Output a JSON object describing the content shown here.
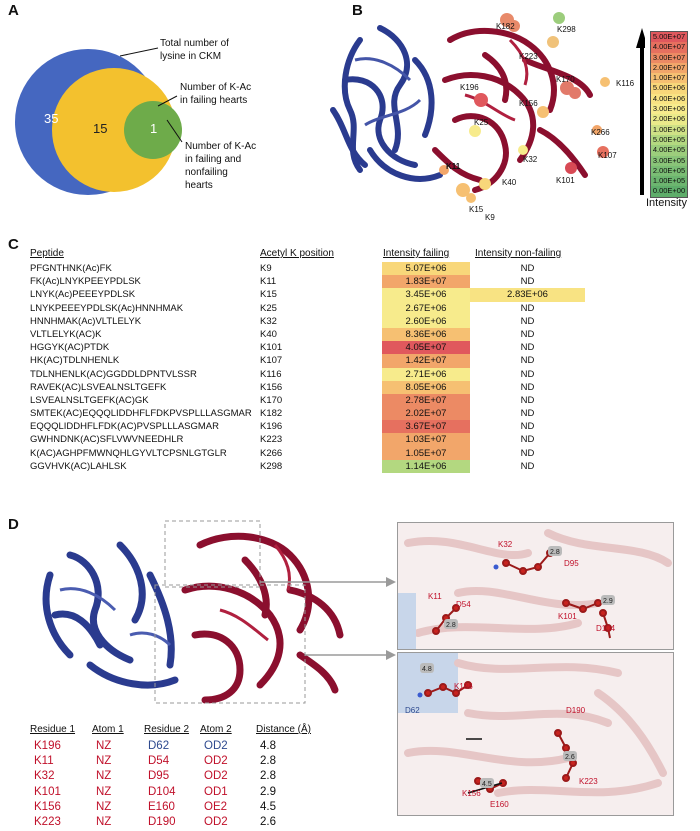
{
  "panel_labels": {
    "a": "A",
    "b": "B",
    "c": "C",
    "d": "D"
  },
  "venn": {
    "outer_value": "35",
    "middle_value": "15",
    "inner_value": "1",
    "label_total": [
      "Total number of",
      "lysine in CKM"
    ],
    "label_failing": [
      "Number of K-Ac",
      "in failing hearts"
    ],
    "label_both": [
      "Number of K-Ac",
      "in failing and",
      "nonfailing",
      "hearts"
    ],
    "colors": {
      "outer": "#4567c0",
      "middle": "#f3c12e",
      "inner": "#6eab4a"
    }
  },
  "structure_b": {
    "lysine_labels": [
      "K182",
      "K298",
      "K223",
      "K170",
      "K116",
      "K196",
      "K156",
      "K25",
      "K266",
      "K107",
      "K32",
      "K101",
      "K11",
      "K40",
      "K15",
      "K9"
    ],
    "scale_title": "Intensity",
    "scale": [
      {
        "label": "5.00E+07",
        "color": "#e0585d"
      },
      {
        "label": "4.00E+07",
        "color": "#e6705f"
      },
      {
        "label": "3.00E+07",
        "color": "#ec8a64"
      },
      {
        "label": "2.00E+07",
        "color": "#f2a66a"
      },
      {
        "label": "1.00E+07",
        "color": "#f6c072"
      },
      {
        "label": "5.00E+06",
        "color": "#f8d77a"
      },
      {
        "label": "4.00E+06",
        "color": "#f8e383"
      },
      {
        "label": "3.00E+06",
        "color": "#f7eb8c"
      },
      {
        "label": "2.00E+06",
        "color": "#eaea8a"
      },
      {
        "label": "1.00E+06",
        "color": "#cfe186"
      },
      {
        "label": "5.00E+05",
        "color": "#b3d880"
      },
      {
        "label": "4.00E+05",
        "color": "#9ccd7c"
      },
      {
        "label": "3.00E+05",
        "color": "#89c478"
      },
      {
        "label": "2.00E+05",
        "color": "#7abd74"
      },
      {
        "label": "1.00E+05",
        "color": "#6cb56f"
      },
      {
        "label": "0.00E+00",
        "color": "#5ead6a"
      }
    ]
  },
  "table_c": {
    "headers": {
      "peptide": "Peptide",
      "position": "Acetyl K position",
      "failing": "Intensity failing",
      "nonfailing": "Intensity non-failing"
    },
    "rows": [
      {
        "peptide": "PFGNTHNK(Ac)FK",
        "position": "K9",
        "failing": "5.07E+06",
        "nonfailing": "ND",
        "color": "#f8d77a"
      },
      {
        "peptide": "FK(Ac)LNYKPEEYPDLSK",
        "position": "K11",
        "failing": "1.83E+07",
        "nonfailing": "ND",
        "color": "#f2a66a"
      },
      {
        "peptide": "LNYK(Ac)PEEEYPDLSK",
        "position": "K15",
        "failing": "3.45E+06",
        "nonfailing": "2.83E+06",
        "color": "#f7eb8c",
        "nf_color": "#f8e383"
      },
      {
        "peptide": "LNYKPEEEYPDLSK(Ac)HNNHMAK",
        "position": "K25",
        "failing": "2.67E+06",
        "nonfailing": "ND",
        "color": "#f7eb8c"
      },
      {
        "peptide": "HNNHMAK(Ac)VLTLELYK",
        "position": "K32",
        "failing": "2.60E+06",
        "nonfailing": "ND",
        "color": "#f7eb8c"
      },
      {
        "peptide": "VLTLELYK(AC)K",
        "position": "K40",
        "failing": "8.36E+06",
        "nonfailing": "ND",
        "color": "#f6c072"
      },
      {
        "peptide": "HGGYK(AC)PTDK",
        "position": "K101",
        "failing": "4.05E+07",
        "nonfailing": "ND",
        "color": "#e0585d"
      },
      {
        "peptide": "HK(AC)TDLNHENLK",
        "position": "K107",
        "failing": "1.42E+07",
        "nonfailing": "ND",
        "color": "#f2a66a"
      },
      {
        "peptide": "TDLNHENLK(AC)GGDDLDPNTVLSSR",
        "position": "K116",
        "failing": "2.71E+06",
        "nonfailing": "ND",
        "color": "#f7eb8c"
      },
      {
        "peptide": "RAVEK(AC)LSVEALNSLTGEFK",
        "position": "K156",
        "failing": "8.05E+06",
        "nonfailing": "ND",
        "color": "#f6c072"
      },
      {
        "peptide": "LSVEALNSLTGEFK(AC)GK",
        "position": "K170",
        "failing": "2.78E+07",
        "nonfailing": "ND",
        "color": "#ec8a64"
      },
      {
        "peptide": "SMTEK(AC)EQQQLIDDHFLFDKPVSPLLLASGMAR",
        "position": "K182",
        "failing": "2.02E+07",
        "nonfailing": "ND",
        "color": "#ec8a64"
      },
      {
        "peptide": "EQQQLIDDHFLFDK(AC)PVSPLLLASGMAR",
        "position": "K196",
        "failing": "3.67E+07",
        "nonfailing": "ND",
        "color": "#e6705f"
      },
      {
        "peptide": "GWHNDNK(AC)SFLVWVNEEDHLR",
        "position": "K223",
        "failing": "1.03E+07",
        "nonfailing": "ND",
        "color": "#f2a66a"
      },
      {
        "peptide": "K(AC)AGHPFMWNQHLGYVLTCPSNLGTGLR",
        "position": "K266",
        "failing": "1.05E+07",
        "nonfailing": "ND",
        "color": "#f2a66a"
      },
      {
        "peptide": "GGVHVK(AC)LAHLSK",
        "position": "K298",
        "failing": "1.14E+06",
        "nonfailing": "ND",
        "color": "#b3d880"
      }
    ]
  },
  "table_d": {
    "headers": [
      "Residue 1",
      "Atom 1",
      "Residue 2",
      "Atom 2",
      "Distance (Å)"
    ],
    "rows": [
      {
        "res1": "K196",
        "atom1": "NZ",
        "res2": "D62",
        "atom2": "OD2",
        "dist": "4.8",
        "res2_color": "#2e4a8f"
      },
      {
        "res1": "K11",
        "atom1": "NZ",
        "res2": "D54",
        "atom2": "OD2",
        "dist": "2.8",
        "res2_color": "#c0102a"
      },
      {
        "res1": "K32",
        "atom1": "NZ",
        "res2": "D95",
        "atom2": "OD2",
        "dist": "2.8",
        "res2_color": "#c0102a"
      },
      {
        "res1": "K101",
        "atom1": "NZ",
        "res2": "D104",
        "atom2": "OD1",
        "dist": "2.9",
        "res2_color": "#c0102a"
      },
      {
        "res1": "K156",
        "atom1": "NZ",
        "res2": "E160",
        "atom2": "OE2",
        "dist": "4.5",
        "res2_color": "#c0102a"
      },
      {
        "res1": "K223",
        "atom1": "NZ",
        "res2": "D190",
        "atom2": "OD2",
        "dist": "2.6",
        "res2_color": "#c0102a"
      }
    ]
  },
  "inset_top": {
    "labels": [
      "K32",
      "D95",
      "K11",
      "D54",
      "K101",
      "D104"
    ],
    "distances": [
      "2.8",
      "2.9",
      "2.8"
    ]
  },
  "inset_bottom": {
    "labels": [
      "K196",
      "D62",
      "D190",
      "K223",
      "K156",
      "E160"
    ],
    "distances": [
      "4.8",
      "2.6",
      "4.5"
    ]
  }
}
